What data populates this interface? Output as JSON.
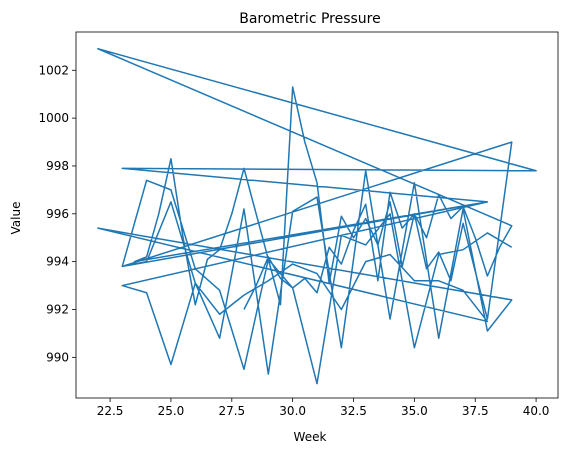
{
  "chart_data": {
    "type": "line",
    "title": "Barometric Pressure",
    "xlabel": "Week",
    "ylabel": "Value",
    "xlim": [
      21.1,
      40.9
    ],
    "ylim": [
      988.3,
      1003.6
    ],
    "xticks": [
      "22.5",
      "25.0",
      "27.5",
      "30.0",
      "32.5",
      "35.0",
      "37.5",
      "40.0"
    ],
    "yticks": [
      "990",
      "992",
      "994",
      "996",
      "998",
      "1000",
      "1002"
    ],
    "grid": false,
    "line_color": "#1f77b4",
    "series": [
      {
        "x": [
          28,
          28.5,
          29,
          29.5,
          30,
          30.5,
          31,
          31.5,
          32,
          32.5,
          33,
          33.5,
          34,
          34.5,
          35,
          35.5,
          36,
          36.5,
          37,
          37.5,
          38,
          38.5,
          39,
          22,
          40,
          23,
          38,
          23.5,
          24,
          24.5,
          25,
          25.5,
          26,
          26.5,
          27,
          27.5,
          28,
          28.5,
          29,
          29.5,
          30,
          30.5,
          31,
          31.5,
          32,
          32.5,
          33,
          33.5,
          34,
          34.5,
          35,
          35.5,
          36,
          36.5,
          37,
          37.5,
          38,
          39,
          23,
          24,
          25,
          26,
          27,
          28,
          29,
          30,
          31,
          32,
          33,
          34,
          35,
          36,
          37,
          38,
          39,
          22,
          38,
          37,
          36,
          35,
          34,
          33,
          32,
          31,
          30,
          29,
          28,
          27,
          26,
          25,
          24,
          23,
          38,
          23,
          24,
          25,
          26,
          27,
          28,
          29,
          30,
          31,
          32,
          33,
          34,
          35,
          36,
          37,
          38,
          39
        ],
        "values": [
          992.0,
          993.0,
          994.2,
          993.3,
          992.9,
          993.3,
          992.7,
          994.6,
          993.9,
          995.3,
          996.4,
          993.2,
          996.9,
          995.4,
          996.0,
          995.0,
          996.8,
          995.8,
          996.3,
          995.0,
          993.4,
          994.6,
          995.5,
          1002.9,
          997.8,
          997.9,
          996.5,
          994.0,
          994.2,
          996.0,
          998.3,
          995.0,
          992.2,
          994.1,
          994.5,
          996.0,
          997.9,
          996.0,
          994.1,
          992.2,
          1001.3,
          999.0,
          997.3,
          993.1,
          995.9,
          995.0,
          995.8,
          994.7,
          996.5,
          993.8,
          996.0,
          993.7,
          994.4,
          993.2,
          995.6,
          993.6,
          991.6,
          999.0,
          993.8,
          994.0,
          996.5,
          993.1,
          990.8,
          996.2,
          989.3,
          996.1,
          996.7,
          990.4,
          997.8,
          991.6,
          997.3,
          990.8,
          996.2,
          991.1,
          992.4,
          995.4,
          991.5,
          992.8,
          993.2,
          993.2,
          994.3,
          994.0,
          992.0,
          993.5,
          993.9,
          993.2,
          992.6,
          991.8,
          993.1,
          989.7,
          992.7,
          993.0,
          996.5,
          993.8,
          997.4,
          997.0,
          993.7,
          992.8,
          989.5,
          994.1,
          992.9,
          988.9,
          995.1,
          994.7,
          996.0,
          990.4,
          994.3,
          994.5,
          995.2,
          994.6
        ]
      }
    ]
  }
}
